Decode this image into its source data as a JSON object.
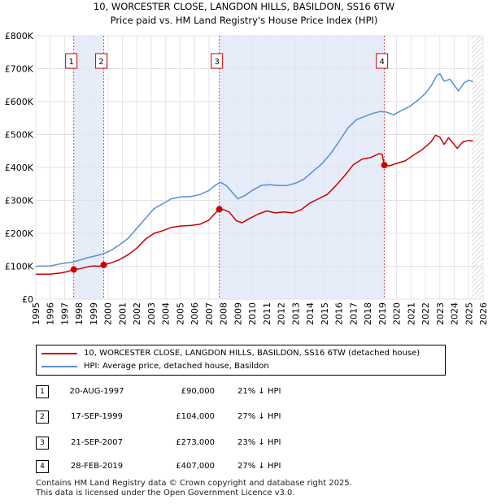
{
  "chart_data": {
    "type": "line",
    "title": "10, WORCESTER CLOSE, LANGDON HILLS, BASILDON, SS16 6TW",
    "subtitle": "Price paid vs. HM Land Registry's House Price Index (HPI)",
    "y_ticks": [
      {
        "value": 0,
        "label": "£0"
      },
      {
        "value": 100000,
        "label": "£100K"
      },
      {
        "value": 200000,
        "label": "£200K"
      },
      {
        "value": 300000,
        "label": "£300K"
      },
      {
        "value": 400000,
        "label": "£400K"
      },
      {
        "value": 500000,
        "label": "£500K"
      },
      {
        "value": 600000,
        "label": "£600K"
      },
      {
        "value": 700000,
        "label": "£700K"
      },
      {
        "value": 800000,
        "label": "£800K"
      }
    ],
    "x_ticks": [
      "1995",
      "1996",
      "1997",
      "1998",
      "1999",
      "2000",
      "2001",
      "2002",
      "2003",
      "2004",
      "2005",
      "2006",
      "2007",
      "2008",
      "2009",
      "2010",
      "2011",
      "2012",
      "2013",
      "2014",
      "2015",
      "2016",
      "2017",
      "2018",
      "2019",
      "2020",
      "2021",
      "2022",
      "2023",
      "2024",
      "2025",
      "2026"
    ],
    "xlim": [
      1995,
      2026
    ],
    "ylim": [
      0,
      800000
    ],
    "series": [
      {
        "name": "10, WORCESTER CLOSE, LANGDON HILLS, BASILDON, SS16 6TW (detached house)",
        "color": "#cc0000",
        "points": [
          [
            1995.0,
            76000
          ],
          [
            1996.0,
            76000
          ],
          [
            1996.8,
            80000
          ],
          [
            1997.3,
            85000
          ],
          [
            1997.63,
            90000
          ],
          [
            1998.0,
            92000
          ],
          [
            1998.6,
            98000
          ],
          [
            1999.0,
            101000
          ],
          [
            1999.4,
            100000
          ],
          [
            1999.71,
            104000
          ],
          [
            2000.2,
            110000
          ],
          [
            2000.8,
            120000
          ],
          [
            2001.4,
            135000
          ],
          [
            2002.0,
            155000
          ],
          [
            2002.6,
            182000
          ],
          [
            2003.2,
            200000
          ],
          [
            2003.8,
            208000
          ],
          [
            2004.4,
            218000
          ],
          [
            2005.0,
            222000
          ],
          [
            2005.8,
            224000
          ],
          [
            2006.4,
            228000
          ],
          [
            2007.0,
            240000
          ],
          [
            2007.3,
            255000
          ],
          [
            2007.72,
            273000
          ],
          [
            2008.0,
            272000
          ],
          [
            2008.4,
            265000
          ],
          [
            2008.9,
            238000
          ],
          [
            2009.3,
            232000
          ],
          [
            2009.8,
            245000
          ],
          [
            2010.4,
            258000
          ],
          [
            2011.0,
            268000
          ],
          [
            2011.6,
            262000
          ],
          [
            2012.2,
            265000
          ],
          [
            2012.8,
            262000
          ],
          [
            2013.4,
            272000
          ],
          [
            2014.0,
            292000
          ],
          [
            2014.6,
            305000
          ],
          [
            2015.2,
            318000
          ],
          [
            2015.8,
            345000
          ],
          [
            2016.4,
            375000
          ],
          [
            2017.0,
            408000
          ],
          [
            2017.6,
            425000
          ],
          [
            2018.2,
            430000
          ],
          [
            2018.8,
            442000
          ],
          [
            2019.0,
            440000
          ],
          [
            2019.16,
            407000
          ],
          [
            2019.5,
            405000
          ],
          [
            2020.0,
            412000
          ],
          [
            2020.6,
            420000
          ],
          [
            2021.2,
            438000
          ],
          [
            2021.8,
            455000
          ],
          [
            2022.4,
            478000
          ],
          [
            2022.7,
            498000
          ],
          [
            2023.0,
            492000
          ],
          [
            2023.3,
            470000
          ],
          [
            2023.6,
            490000
          ],
          [
            2023.9,
            475000
          ],
          [
            2024.2,
            458000
          ],
          [
            2024.6,
            478000
          ],
          [
            2025.0,
            482000
          ],
          [
            2025.3,
            480000
          ]
        ]
      },
      {
        "name": "HPI: Average price, detached house, Basildon",
        "color": "#5a8fd0",
        "points": [
          [
            1995.0,
            100000
          ],
          [
            1996.0,
            101000
          ],
          [
            1996.8,
            108000
          ],
          [
            1997.5,
            112000
          ],
          [
            1998.0,
            118000
          ],
          [
            1998.6,
            126000
          ],
          [
            1999.2,
            132000
          ],
          [
            1999.7,
            138000
          ],
          [
            2000.2,
            148000
          ],
          [
            2000.8,
            165000
          ],
          [
            2001.4,
            185000
          ],
          [
            2002.0,
            215000
          ],
          [
            2002.6,
            245000
          ],
          [
            2003.2,
            275000
          ],
          [
            2003.8,
            290000
          ],
          [
            2004.4,
            305000
          ],
          [
            2005.0,
            310000
          ],
          [
            2005.8,
            312000
          ],
          [
            2006.4,
            318000
          ],
          [
            2007.0,
            330000
          ],
          [
            2007.4,
            345000
          ],
          [
            2007.8,
            355000
          ],
          [
            2008.2,
            345000
          ],
          [
            2008.6,
            325000
          ],
          [
            2009.0,
            305000
          ],
          [
            2009.5,
            315000
          ],
          [
            2010.0,
            330000
          ],
          [
            2010.6,
            345000
          ],
          [
            2011.2,
            348000
          ],
          [
            2011.8,
            345000
          ],
          [
            2012.4,
            345000
          ],
          [
            2013.0,
            352000
          ],
          [
            2013.6,
            365000
          ],
          [
            2014.2,
            388000
          ],
          [
            2014.8,
            410000
          ],
          [
            2015.4,
            440000
          ],
          [
            2016.0,
            478000
          ],
          [
            2016.6,
            518000
          ],
          [
            2017.2,
            545000
          ],
          [
            2017.8,
            555000
          ],
          [
            2018.4,
            565000
          ],
          [
            2018.9,
            570000
          ],
          [
            2019.3,
            568000
          ],
          [
            2019.8,
            560000
          ],
          [
            2020.3,
            572000
          ],
          [
            2020.9,
            585000
          ],
          [
            2021.5,
            605000
          ],
          [
            2022.0,
            625000
          ],
          [
            2022.4,
            648000
          ],
          [
            2022.8,
            680000
          ],
          [
            2023.0,
            685000
          ],
          [
            2023.3,
            662000
          ],
          [
            2023.7,
            668000
          ],
          [
            2024.0,
            650000
          ],
          [
            2024.3,
            632000
          ],
          [
            2024.7,
            658000
          ],
          [
            2025.0,
            665000
          ],
          [
            2025.3,
            660000
          ]
        ]
      }
    ],
    "shaded_ranges": [
      [
        1997.63,
        1999.71
      ],
      [
        2007.72,
        2019.16
      ]
    ],
    "future_hatch_from": 2025.2,
    "sales": [
      {
        "num": "1",
        "x": 1997.63,
        "y": 90000
      },
      {
        "num": "2",
        "x": 1999.71,
        "y": 104000
      },
      {
        "num": "3",
        "x": 2007.72,
        "y": 273000
      },
      {
        "num": "4",
        "x": 2019.16,
        "y": 407000
      }
    ]
  },
  "legend": {
    "property_label": "10, WORCESTER CLOSE, LANGDON HILLS, BASILDON, SS16 6TW (detached house)",
    "hpi_label": "HPI: Average price, detached house, Basildon",
    "property_color": "#cc0000",
    "hpi_color": "#5a8fd0"
  },
  "transactions": [
    {
      "num": "1",
      "date": "20-AUG-1997",
      "price": "£90,000",
      "hpi": "21% ↓ HPI"
    },
    {
      "num": "2",
      "date": "17-SEP-1999",
      "price": "£104,000",
      "hpi": "27% ↓ HPI"
    },
    {
      "num": "3",
      "date": "21-SEP-2007",
      "price": "£273,000",
      "hpi": "23% ↓ HPI"
    },
    {
      "num": "4",
      "date": "28-FEB-2019",
      "price": "£407,000",
      "hpi": "27% ↓ HPI"
    }
  ],
  "footer": {
    "line1": "Contains HM Land Registry data © Crown copyright and database right 2025.",
    "line2": "This data is licensed under the Open Government Licence v3.0."
  }
}
